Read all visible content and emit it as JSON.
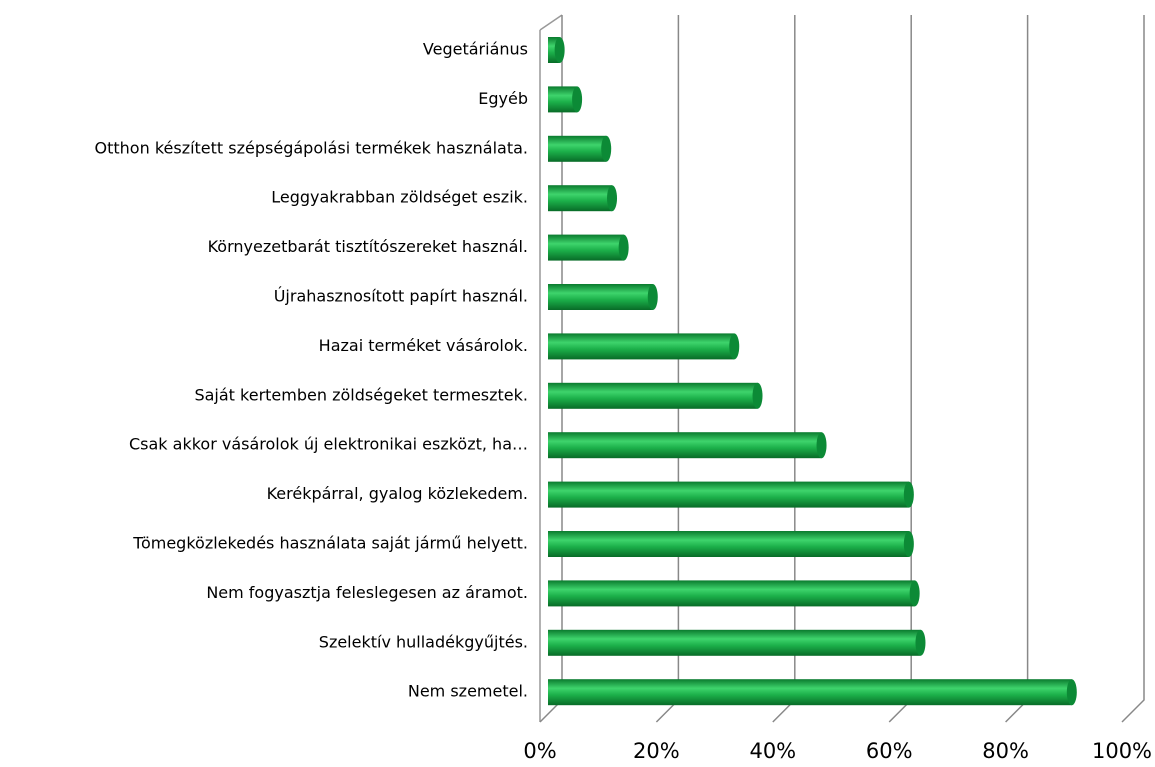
{
  "chart_data": {
    "type": "bar",
    "orientation": "horizontal",
    "categories": [
      "Vegetáriánus",
      "Egyéb",
      "Otthon készített szépségápolási termékek használata.",
      "Leggyakrabban zöldséget eszik.",
      "Környezetbarát tisztítószereket használ.",
      "Újrahasznosított papírt használ.",
      "Hazai terméket vásárolok.",
      "Saját kertemben zöldségeket termesztek.",
      "Csak akkor vásárolok új elektronikai eszközt, ha…",
      "Kerékpárral, gyalog közlekedem.",
      "Tömegközlekedés használata saját jármű helyett.",
      "Nem fogyasztja feleslegesen az áramot.",
      "Szelektív hulladékgyűjtés.",
      "Nem szemetel."
    ],
    "values": [
      2,
      5,
      10,
      11,
      13,
      18,
      32,
      36,
      47,
      62,
      62,
      63,
      64,
      90
    ],
    "color": "#1cb04a",
    "xlim": [
      0,
      100
    ],
    "xticks": [
      {
        "value": 0,
        "label": "0%"
      },
      {
        "value": 20,
        "label": "20%"
      },
      {
        "value": 40,
        "label": "40%"
      },
      {
        "value": 60,
        "label": "60%"
      },
      {
        "value": 80,
        "label": "80%"
      },
      {
        "value": 100,
        "label": "100%"
      }
    ],
    "grid": true
  }
}
